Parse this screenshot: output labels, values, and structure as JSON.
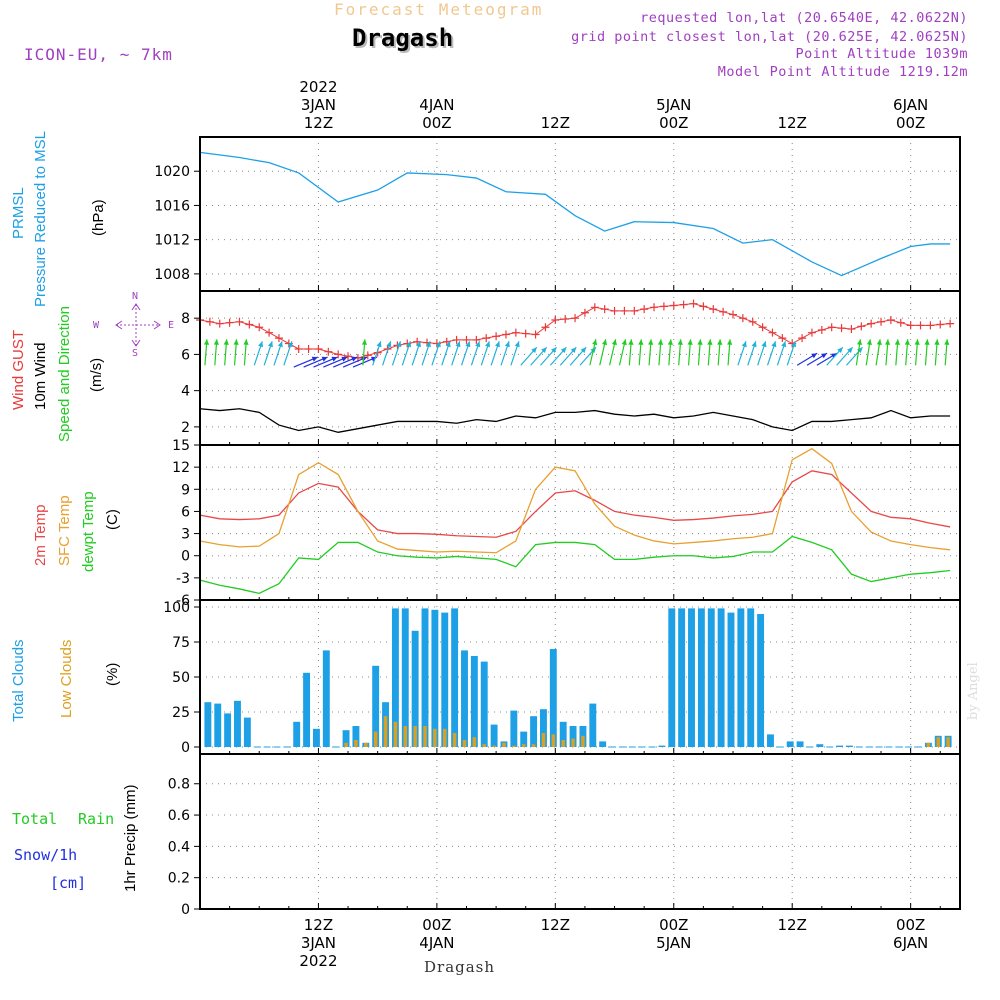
{
  "header": {
    "title": "Forecast Meteogram",
    "location": "Dragash",
    "model": "ICON-EU, ~ 7km",
    "requested": "requested lon,lat (20.6540E, 42.0622N)",
    "grid_point": "grid point closest lon,lat (20.625E, 42.0625N)",
    "point_altitude": "Point Altitude 1039m",
    "model_altitude": "Model Point Altitude 1219.12m",
    "watermark": "by Angel",
    "bottom_label": "Dragash"
  },
  "colors": {
    "pressure": "#1ea0e6",
    "gust": "#e83a3a",
    "wind": "#000000",
    "arrow_green": "#22cc22",
    "arrow_cyan": "#20b2d8",
    "arrow_blue": "#2030e0",
    "temp": "#e84848",
    "sfc": "#e8a030",
    "dew": "#22cc22",
    "total_clouds": "#1ea0e6",
    "low_clouds": "#dca020",
    "rain": "#22cc22",
    "snow": "#2030e0",
    "compass": "#a040c0",
    "header_title": "#f0c890",
    "header_info": "#a040c0"
  },
  "time_axis": {
    "top_labels": [
      {
        "hour": 12,
        "lines": [
          "2022",
          "3JAN",
          "12Z"
        ]
      },
      {
        "hour": 24,
        "lines": [
          "4JAN",
          "00Z"
        ]
      },
      {
        "hour": 36,
        "lines": [
          "12Z"
        ]
      },
      {
        "hour": 48,
        "lines": [
          "5JAN",
          "00Z"
        ]
      },
      {
        "hour": 60,
        "lines": [
          "12Z"
        ]
      },
      {
        "hour": 72,
        "lines": [
          "6JAN",
          "00Z"
        ]
      }
    ],
    "bottom_labels": [
      {
        "hour": 12,
        "lines": [
          "12Z",
          "3JAN",
          "2022"
        ]
      },
      {
        "hour": 24,
        "lines": [
          "00Z",
          "4JAN"
        ]
      },
      {
        "hour": 36,
        "lines": [
          "12Z"
        ]
      },
      {
        "hour": 48,
        "lines": [
          "00Z",
          "5JAN"
        ]
      },
      {
        "hour": 60,
        "lines": [
          "12Z"
        ]
      },
      {
        "hour": 72,
        "lines": [
          "00Z",
          "6JAN"
        ]
      }
    ]
  },
  "panels": {
    "pressure": {
      "label1": "PRMSL",
      "label2": "Pressure Reduced to MSL",
      "unit": "(hPa)"
    },
    "wind": {
      "label_gust": "Wind GUST",
      "label_wind": "10m Wind",
      "label_dir": "Speed and Direction",
      "unit": "(m/s)",
      "compass": {
        "n": "N",
        "s": "S",
        "e": "E",
        "w": "W"
      }
    },
    "temp": {
      "label_t2m": "2m Temp",
      "label_sfc": "SFC Temp",
      "label_dew": "dewpt Temp",
      "unit": "(C)"
    },
    "clouds": {
      "label_total": "Total Clouds",
      "label_low": "Low Clouds",
      "unit": "(%)"
    },
    "precip": {
      "label_total": "Total",
      "label_rain": "Rain",
      "label_snow": "Snow/1h",
      "label_cm": "[cm]",
      "unit": "1hr Precip (mm)"
    }
  },
  "chart_data": [
    {
      "type": "line",
      "x": [
        0,
        4,
        7,
        10,
        14,
        18,
        21,
        25,
        28,
        31,
        35,
        38,
        41,
        44,
        48,
        52,
        55,
        58,
        62,
        65,
        67,
        69,
        72,
        74,
        76
      ],
      "series": [
        {
          "name": "PRMSL",
          "values": [
            1022.2,
            1021.6,
            1021.0,
            1019.8,
            1016.4,
            1017.8,
            1019.8,
            1019.6,
            1019.2,
            1017.6,
            1017.3,
            1014.8,
            1013.0,
            1014.1,
            1014.0,
            1013.3,
            1011.6,
            1012.0,
            1009.4,
            1007.8,
            1008.8,
            1009.8,
            1011.2,
            1011.5,
            1011.5
          ]
        }
      ],
      "ylim": [
        1006,
        1024
      ],
      "yticks": [
        1008,
        1012,
        1016,
        1020
      ]
    },
    {
      "type": "line",
      "x": [
        0,
        2,
        4,
        6,
        8,
        10,
        12,
        14,
        16,
        18,
        20,
        22,
        24,
        26,
        28,
        30,
        32,
        34,
        36,
        38,
        40,
        42,
        44,
        46,
        48,
        50,
        52,
        54,
        56,
        58,
        60,
        62,
        64,
        66,
        68,
        70,
        72,
        74,
        76
      ],
      "series": [
        {
          "name": "Wind GUST",
          "values": [
            7.9,
            7.7,
            7.8,
            7.5,
            6.9,
            6.3,
            6.3,
            6.0,
            5.8,
            6.1,
            6.5,
            6.7,
            6.6,
            6.8,
            6.8,
            7.0,
            7.2,
            7.1,
            7.9,
            8.0,
            8.6,
            8.4,
            8.4,
            8.6,
            8.7,
            8.8,
            8.5,
            8.2,
            7.8,
            7.2,
            6.6,
            7.2,
            7.5,
            7.4,
            7.7,
            7.9,
            7.6,
            7.6,
            7.7
          ]
        },
        {
          "name": "10m Wind",
          "values": [
            3.0,
            2.9,
            3.0,
            2.8,
            2.1,
            1.8,
            2.0,
            1.7,
            1.9,
            2.1,
            2.3,
            2.3,
            2.3,
            2.2,
            2.4,
            2.3,
            2.6,
            2.5,
            2.8,
            2.8,
            2.9,
            2.7,
            2.6,
            2.7,
            2.5,
            2.6,
            2.8,
            2.6,
            2.4,
            2.0,
            1.8,
            2.3,
            2.3,
            2.4,
            2.5,
            2.9,
            2.5,
            2.6,
            2.6
          ]
        }
      ],
      "ylim": [
        1,
        9.5
      ],
      "yticks": [
        2,
        4,
        6,
        8
      ],
      "arrow_count": 76
    },
    {
      "type": "line",
      "x": [
        0,
        2,
        4,
        6,
        8,
        10,
        12,
        14,
        16,
        18,
        20,
        22,
        24,
        26,
        28,
        30,
        32,
        34,
        36,
        38,
        40,
        42,
        44,
        46,
        48,
        50,
        52,
        54,
        56,
        58,
        60,
        62,
        64,
        66,
        68,
        70,
        72,
        74,
        76
      ],
      "series": [
        {
          "name": "2m Temp",
          "values": [
            5.5,
            5.0,
            4.9,
            5.0,
            5.5,
            8.5,
            9.8,
            9.3,
            6.0,
            3.5,
            3.0,
            3.0,
            2.9,
            2.7,
            2.6,
            2.5,
            3.3,
            6.0,
            8.5,
            8.8,
            7.5,
            6.0,
            5.5,
            5.2,
            4.8,
            4.9,
            5.1,
            5.4,
            5.6,
            6.0,
            10.0,
            11.5,
            11.0,
            8.5,
            6.0,
            5.2,
            5.0,
            4.4,
            3.9
          ]
        },
        {
          "name": "SFC Temp",
          "values": [
            2.0,
            1.5,
            1.2,
            1.3,
            3.0,
            11.0,
            12.6,
            11.0,
            6.0,
            2.0,
            0.9,
            0.7,
            0.5,
            0.6,
            0.5,
            0.4,
            2.0,
            9.0,
            12.0,
            11.5,
            7.0,
            4.0,
            2.8,
            2.0,
            1.6,
            1.8,
            2.0,
            2.3,
            2.5,
            3.0,
            13.0,
            14.5,
            12.5,
            6.0,
            3.2,
            2.0,
            1.5,
            1.1,
            0.8
          ]
        },
        {
          "name": "dewpt Temp",
          "values": [
            -3.3,
            -4.0,
            -4.5,
            -5.1,
            -3.8,
            -0.3,
            -0.5,
            1.8,
            1.8,
            0.5,
            0.0,
            -0.2,
            -0.3,
            -0.1,
            -0.3,
            -0.5,
            -1.5,
            1.5,
            1.8,
            1.8,
            1.5,
            -0.5,
            -0.5,
            -0.2,
            0.0,
            0.0,
            -0.3,
            -0.1,
            0.5,
            0.5,
            2.6,
            1.8,
            0.8,
            -2.5,
            -3.5,
            -3.0,
            -2.5,
            -2.3,
            -2.0
          ]
        }
      ],
      "ylim": [
        -6,
        15
      ],
      "yticks": [
        -6,
        -3,
        0,
        3,
        6,
        9,
        12,
        15
      ]
    },
    {
      "type": "bar",
      "x": [
        1,
        2,
        3,
        4,
        5,
        6,
        7,
        8,
        9,
        10,
        11,
        12,
        13,
        14,
        15,
        16,
        17,
        18,
        19,
        20,
        21,
        22,
        23,
        24,
        25,
        26,
        27,
        28,
        29,
        30,
        31,
        32,
        33,
        34,
        35,
        36,
        37,
        38,
        39,
        40,
        41,
        42,
        43,
        44,
        45,
        46,
        47,
        48,
        49,
        50,
        51,
        52,
        53,
        54,
        55,
        56,
        57,
        58,
        59,
        60,
        61,
        62,
        63,
        64,
        65,
        66,
        67,
        68,
        69,
        70,
        71,
        72,
        73,
        74,
        75,
        76
      ],
      "series": [
        {
          "name": "Total Clouds",
          "values": [
            32,
            31,
            24,
            33,
            21,
            0,
            0,
            0,
            0,
            18,
            53,
            13,
            69,
            0,
            12,
            15,
            3,
            58,
            32,
            99,
            99,
            83,
            99,
            98,
            96,
            99,
            69,
            65,
            61,
            16,
            4,
            26,
            11,
            22,
            27,
            70,
            18,
            15,
            15,
            31,
            4,
            0,
            0,
            0,
            0,
            0,
            1,
            99,
            99,
            99,
            99,
            99,
            99,
            96,
            99,
            99,
            95,
            9,
            0,
            4,
            4,
            0,
            2,
            0,
            1,
            1,
            0,
            0,
            0,
            0,
            0,
            0,
            0,
            3,
            8,
            8
          ]
        },
        {
          "name": "Low Clouds",
          "values": [
            0,
            0,
            0,
            0,
            0,
            0,
            0,
            0,
            0,
            0,
            0,
            0,
            0,
            0,
            3,
            5,
            3,
            11,
            22,
            18,
            15,
            15,
            15,
            13,
            13,
            10,
            5,
            7,
            2,
            1,
            3,
            1,
            2,
            2,
            10,
            9,
            5,
            6,
            8,
            0,
            0,
            0,
            0,
            0,
            0,
            0,
            0,
            0,
            0,
            0,
            0,
            0,
            0,
            0,
            0,
            0,
            0,
            0,
            0,
            0,
            0,
            0,
            0,
            0,
            0,
            0,
            0,
            0,
            0,
            0,
            0,
            0,
            0,
            3,
            7,
            7
          ]
        }
      ],
      "ylim": [
        -5,
        105
      ],
      "yticks": [
        0,
        25,
        50,
        75,
        100
      ]
    },
    {
      "type": "bar",
      "x": [],
      "series": [
        {
          "name": "Rain",
          "values": []
        },
        {
          "name": "Snow/1h",
          "values": []
        }
      ],
      "ylim": [
        0,
        0.99
      ],
      "yticks": [
        0,
        0.2,
        0.4,
        0.6,
        0.8
      ]
    }
  ]
}
